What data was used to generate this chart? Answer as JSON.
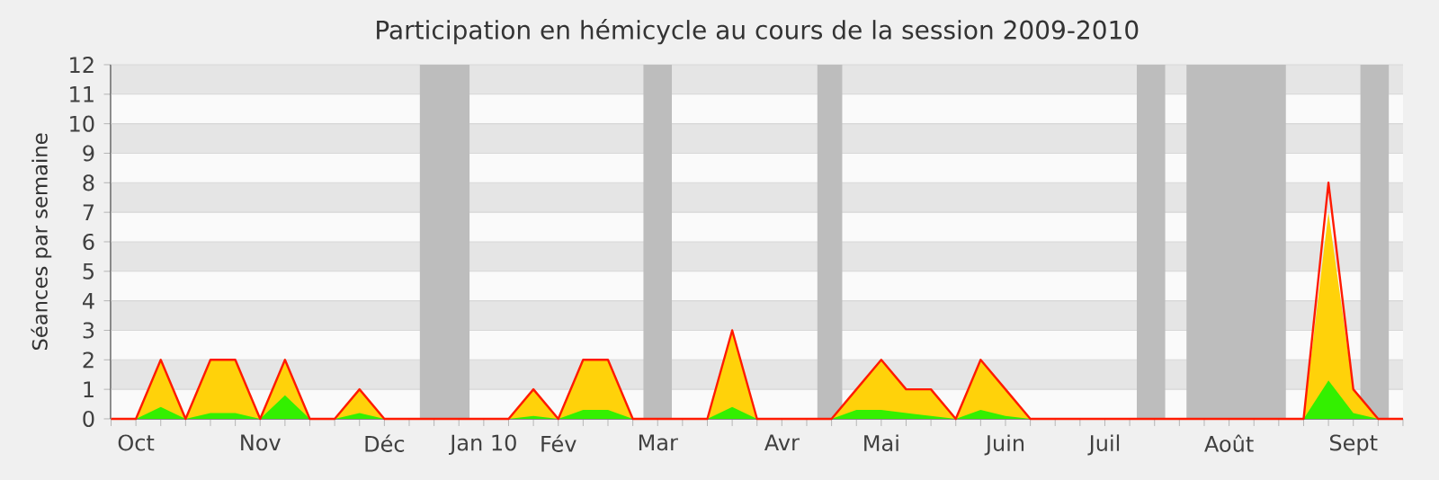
{
  "chart_data": {
    "type": "area",
    "title": "Participation en hémicycle au cours de la session 2009-2010",
    "ylabel": "Séances par semaine",
    "x": [
      "2009-09-28",
      "2009-10-05",
      "2009-10-12",
      "2009-10-19",
      "2009-10-26",
      "2009-11-02",
      "2009-11-09",
      "2009-11-16",
      "2009-11-23",
      "2009-11-30",
      "2009-12-07",
      "2009-12-14",
      "2009-12-21",
      "2009-12-28",
      "2010-01-04",
      "2010-01-11",
      "2010-01-18",
      "2010-01-25",
      "2010-02-01",
      "2010-02-08",
      "2010-02-15",
      "2010-02-22",
      "2010-03-01",
      "2010-03-08",
      "2010-03-15",
      "2010-03-22",
      "2010-03-29",
      "2010-04-05",
      "2010-04-12",
      "2010-04-19",
      "2010-04-26",
      "2010-05-03",
      "2010-05-10",
      "2010-05-17",
      "2010-05-24",
      "2010-05-31",
      "2010-06-07",
      "2010-06-14",
      "2010-06-21",
      "2010-06-28",
      "2010-07-05",
      "2010-07-12",
      "2010-07-19",
      "2010-07-26",
      "2010-08-02",
      "2010-08-09",
      "2010-08-16",
      "2010-08-23",
      "2010-08-30",
      "2010-09-06",
      "2010-09-13",
      "2010-09-20",
      "2010-09-27"
    ],
    "series": [
      {
        "color": "#ffd20a",
        "values": [
          0,
          0,
          2,
          0,
          2,
          2,
          0,
          2,
          0,
          0,
          1,
          0,
          0,
          0,
          0,
          0,
          0,
          1,
          0,
          2,
          2,
          0,
          0,
          0,
          0,
          3,
          0,
          0,
          0,
          0,
          1,
          2,
          1,
          1,
          0,
          2,
          1,
          0,
          0,
          0,
          0,
          0,
          0,
          0,
          0,
          0,
          0,
          0,
          0,
          7,
          1,
          0,
          0
        ]
      },
      {
        "color": "#33f000",
        "values": [
          0,
          0,
          0.4,
          0,
          0.2,
          0.2,
          0,
          0.8,
          0,
          0,
          0.2,
          0,
          0,
          0,
          0,
          0,
          0,
          0.1,
          0,
          0.3,
          0.3,
          0,
          0,
          0,
          0,
          0.4,
          0,
          0,
          0,
          0,
          0.3,
          0.3,
          0.2,
          0.1,
          0,
          0.3,
          0.1,
          0,
          0,
          0,
          0,
          0,
          0,
          0,
          0,
          0,
          0,
          0,
          0,
          1.3,
          0.2,
          0,
          0
        ]
      },
      {
        "type": "line",
        "color": "#ff1a00",
        "values": [
          0,
          0,
          2,
          0,
          2,
          2,
          0,
          2,
          0,
          0,
          1,
          0,
          0,
          0,
          0,
          0,
          0,
          1,
          0,
          2,
          2,
          0,
          0,
          0,
          0,
          3,
          0,
          0,
          0,
          0,
          1,
          2,
          1,
          1,
          0,
          2,
          1,
          0,
          0,
          0,
          0,
          0,
          0,
          0,
          0,
          0,
          0,
          0,
          0,
          8,
          1,
          0,
          0
        ]
      }
    ],
    "xlim": [
      "2009-09-28",
      "2010-09-27"
    ],
    "xticks": [
      {
        "value": "2009-09-28",
        "label": null
      },
      {
        "value": "2009-10-05",
        "label": "Oct"
      },
      {
        "value": "2009-10-12",
        "label": null
      },
      {
        "value": "2009-10-19",
        "label": null
      },
      {
        "value": "2009-10-26",
        "label": null
      },
      {
        "value": "2009-11-02",
        "label": null
      },
      {
        "value": "2009-11-09",
        "label": "Nov"
      },
      {
        "value": "2009-11-16",
        "label": null
      },
      {
        "value": "2009-11-23",
        "label": null
      },
      {
        "value": "2009-11-30",
        "label": null
      },
      {
        "value": "2009-12-07",
        "label": null
      },
      {
        "value": "2009-12-14",
        "label": "Déc"
      },
      {
        "value": "2009-12-21",
        "label": null
      },
      {
        "value": "2009-12-28",
        "label": null
      },
      {
        "value": "2010-01-04",
        "label": null
      },
      {
        "value": "2010-01-11",
        "label": "Jan 10"
      },
      {
        "value": "2010-01-18",
        "label": null
      },
      {
        "value": "2010-01-25",
        "label": null
      },
      {
        "value": "2010-02-01",
        "label": "Fév"
      },
      {
        "value": "2010-02-08",
        "label": null
      },
      {
        "value": "2010-02-15",
        "label": null
      },
      {
        "value": "2010-02-22",
        "label": null
      },
      {
        "value": "2010-03-01",
        "label": "Mar"
      },
      {
        "value": "2010-03-08",
        "label": null
      },
      {
        "value": "2010-03-15",
        "label": null
      },
      {
        "value": "2010-03-22",
        "label": null
      },
      {
        "value": "2010-03-29",
        "label": null
      },
      {
        "value": "2010-04-05",
        "label": "Avr"
      },
      {
        "value": "2010-04-12",
        "label": null
      },
      {
        "value": "2010-04-19",
        "label": null
      },
      {
        "value": "2010-04-26",
        "label": null
      },
      {
        "value": "2010-05-03",
        "label": "Mai"
      },
      {
        "value": "2010-05-10",
        "label": null
      },
      {
        "value": "2010-05-17",
        "label": null
      },
      {
        "value": "2010-05-24",
        "label": null
      },
      {
        "value": "2010-05-31",
        "label": null
      },
      {
        "value": "2010-06-07",
        "label": "Juin"
      },
      {
        "value": "2010-06-14",
        "label": null
      },
      {
        "value": "2010-06-21",
        "label": null
      },
      {
        "value": "2010-06-28",
        "label": null
      },
      {
        "value": "2010-07-05",
        "label": "Juil"
      },
      {
        "value": "2010-07-12",
        "label": null
      },
      {
        "value": "2010-07-19",
        "label": null
      },
      {
        "value": "2010-07-26",
        "label": null
      },
      {
        "value": "2010-08-02",
        "label": null
      },
      {
        "value": "2010-08-09",
        "label": "Août"
      },
      {
        "value": "2010-08-16",
        "label": null
      },
      {
        "value": "2010-08-23",
        "label": null
      },
      {
        "value": "2010-08-30",
        "label": null
      },
      {
        "value": "2010-09-06",
        "label": null
      },
      {
        "value": "2010-09-13",
        "label": "Sept"
      },
      {
        "value": "2010-09-20",
        "label": null
      },
      {
        "value": "2010-09-27",
        "label": null
      }
    ],
    "ylim": [
      0,
      12
    ],
    "yticks": [
      0,
      1,
      2,
      3,
      4,
      5,
      6,
      7,
      8,
      9,
      10,
      11,
      12
    ],
    "grid": "y",
    "bands": [
      {
        "axis": "x",
        "from": "2009-12-24",
        "to": "2010-01-07",
        "color": "#bdbdbd"
      },
      {
        "axis": "x",
        "from": "2010-02-25",
        "to": "2010-03-05",
        "color": "#bdbdbd"
      },
      {
        "axis": "x",
        "from": "2010-04-15",
        "to": "2010-04-22",
        "color": "#bdbdbd"
      },
      {
        "axis": "x",
        "from": "2010-07-14",
        "to": "2010-07-22",
        "color": "#bdbdbd"
      },
      {
        "axis": "x",
        "from": "2010-07-28",
        "to": "2010-08-25",
        "color": "#bdbdbd"
      },
      {
        "axis": "x",
        "from": "2010-09-15",
        "to": "2010-09-23",
        "color": "#bdbdbd"
      }
    ]
  }
}
